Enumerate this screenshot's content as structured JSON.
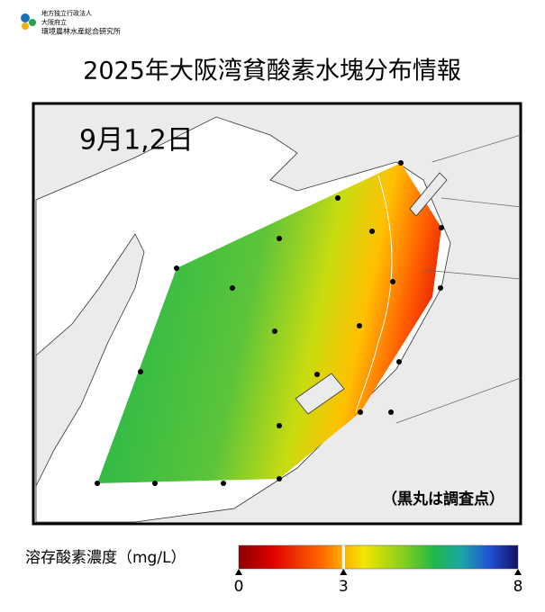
{
  "header": {
    "org": [
      "地方独立行政法人",
      "大阪府立",
      "環境農林水産総合研究所"
    ]
  },
  "title": "2025年大阪湾貧酸素水塊分布情報",
  "map": {
    "date": "9月1,2日",
    "note": "（黒丸は調査点）"
  },
  "legend": {
    "label": "溶存酸素濃度（mg/L）",
    "range": [
      0,
      8
    ],
    "ticks": [
      0,
      3,
      8
    ]
  }
}
